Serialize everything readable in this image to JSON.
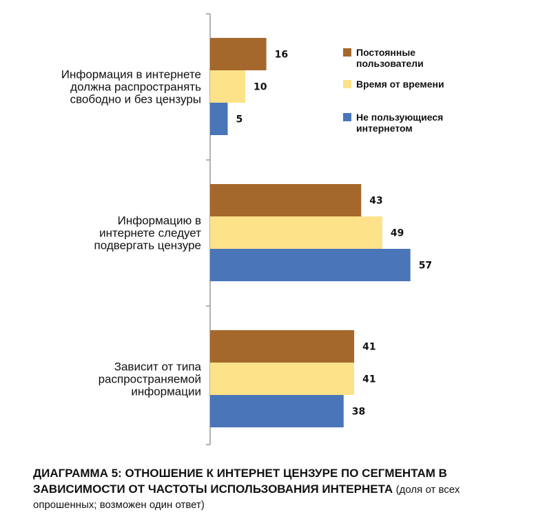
{
  "chart_data": {
    "type": "bar",
    "orientation": "horizontal",
    "categories": [
      [
        "Информация в интернете",
        "должна распространять",
        "свободно и без цензуры"
      ],
      [
        "Информацию в",
        "интернете следует",
        "подвергать цензуре"
      ],
      [
        "Зависит от типа",
        "распространяемой",
        "информации"
      ]
    ],
    "series": [
      {
        "name": [
          "Постоянные",
          "пользователи"
        ],
        "color": "#A5682C",
        "values": [
          16,
          43,
          41
        ]
      },
      {
        "name": [
          "Время от времени"
        ],
        "color": "#FDE28A",
        "values": [
          10,
          49,
          41
        ]
      },
      {
        "name": [
          "Не пользующиеся",
          "интернетом"
        ],
        "color": "#4A76B9",
        "values": [
          5,
          57,
          38
        ]
      }
    ],
    "xlim": [
      0,
      75
    ],
    "legend": "top-right",
    "grid": false
  },
  "caption": {
    "title": "Диаграмма 5: отношение к интернет цензуре по сегментам в зависимости от частоты использования интернета",
    "note": "(доля от всех опрошенных; возможен один ответ)"
  }
}
